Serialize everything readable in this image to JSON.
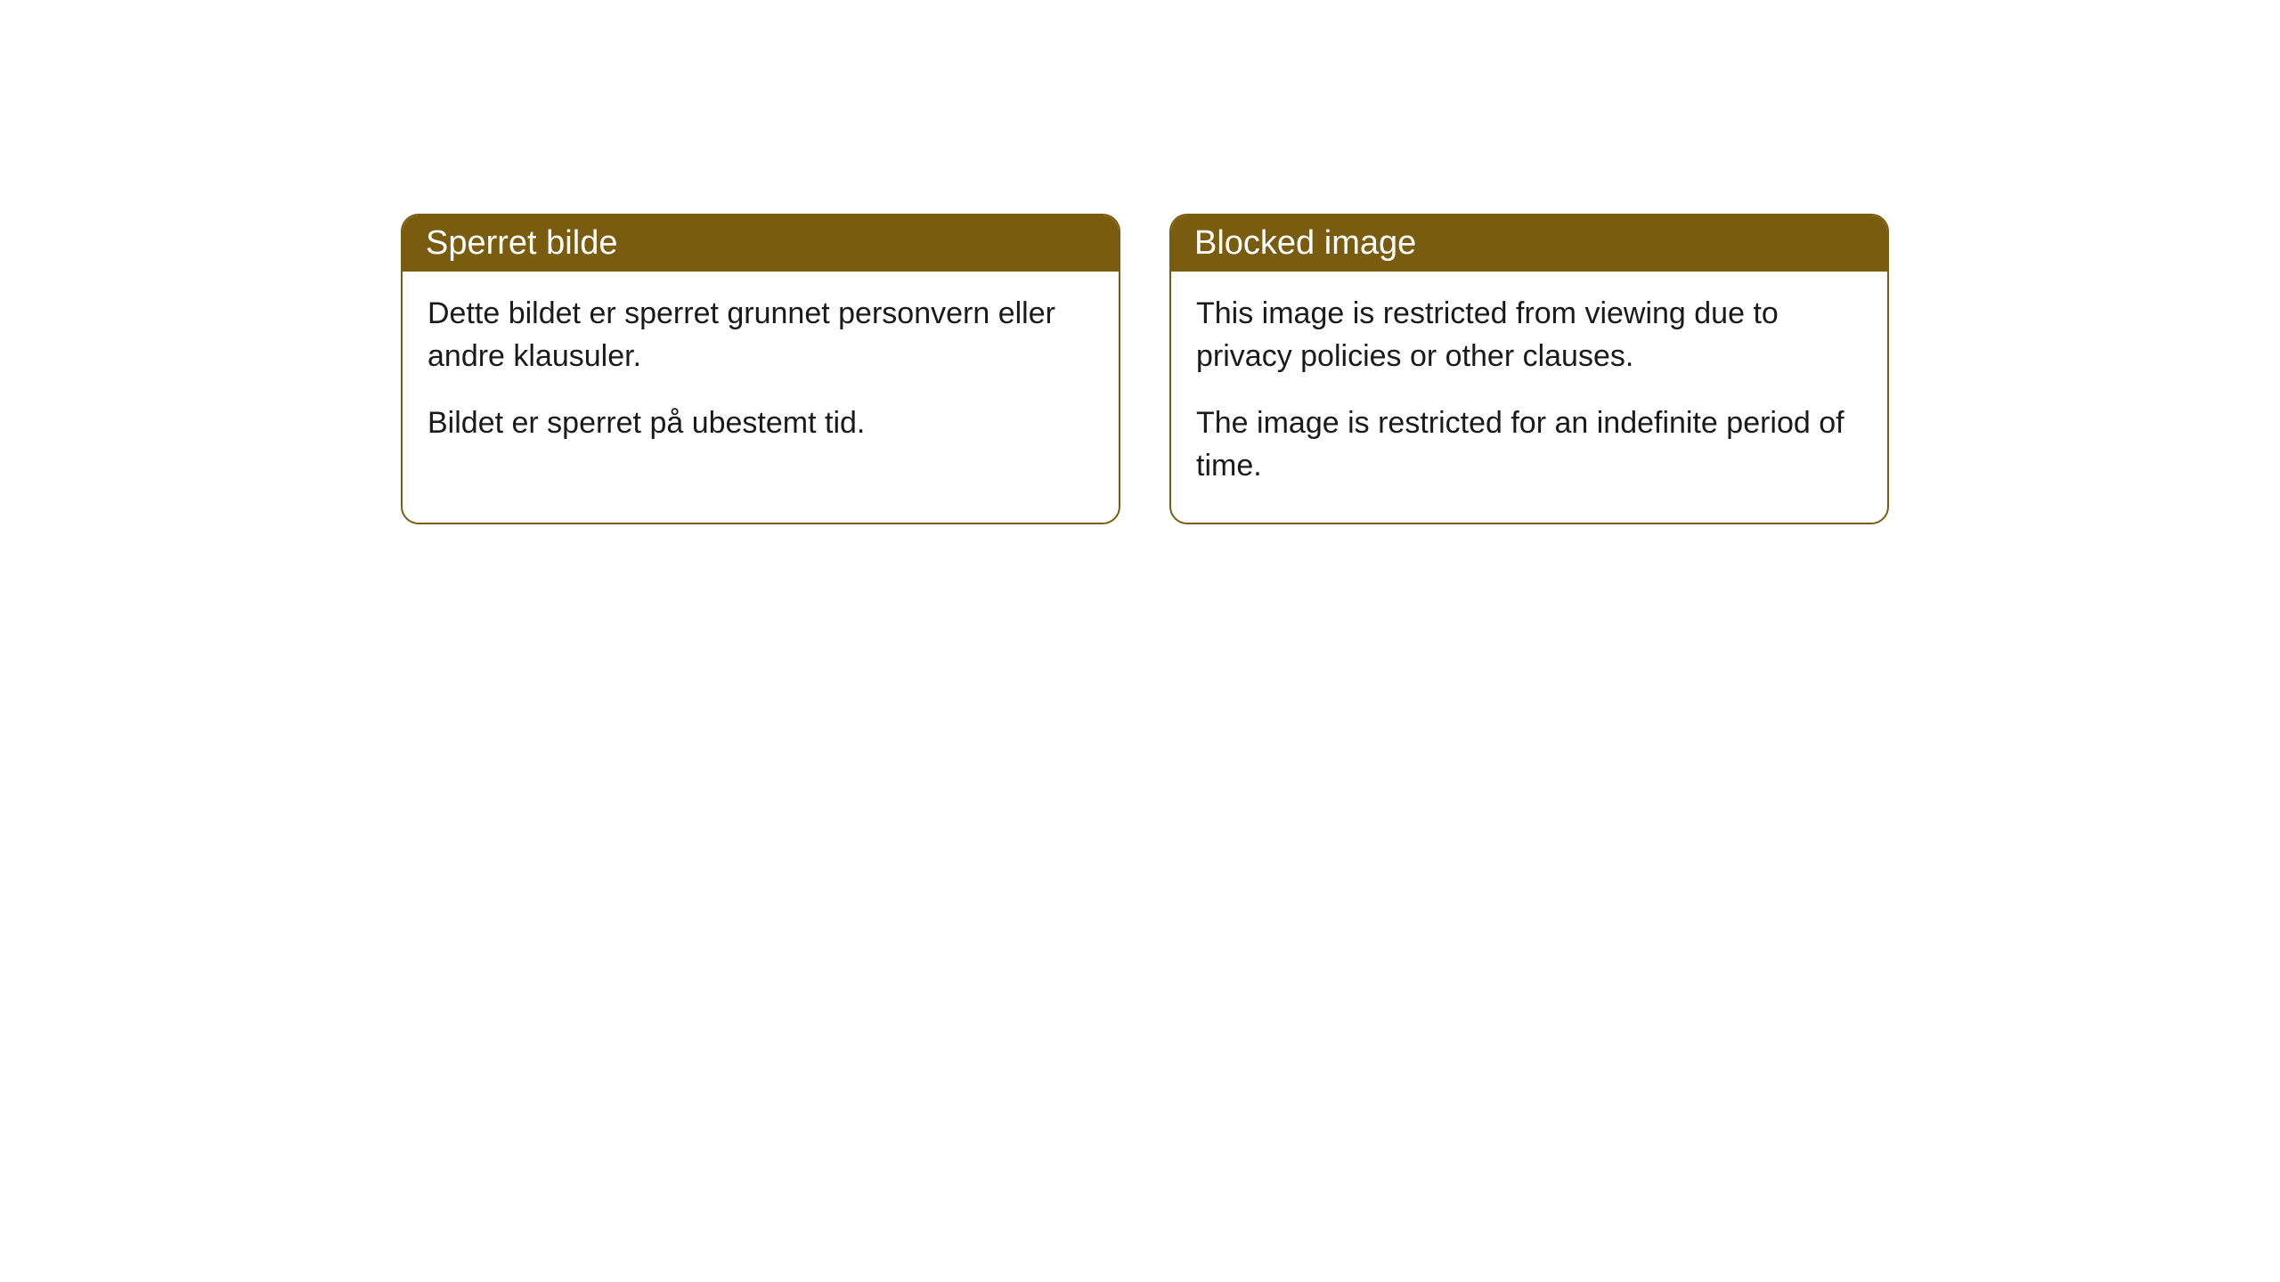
{
  "cards": [
    {
      "title": "Sperret bilde",
      "para1": "Dette bildet er sperret grunnet personvern eller andre klausuler.",
      "para2": "Bildet er sperret på ubestemt tid."
    },
    {
      "title": "Blocked image",
      "para1": "This image is restricted from viewing due to privacy policies or other clauses.",
      "para2": "The image is restricted for an indefinite period of time."
    }
  ],
  "style": {
    "header_bg": "#7a5c10",
    "header_text_color": "#ffffff",
    "border_color": "#7a5c10",
    "body_bg": "#ffffff",
    "body_text_color": "#1a1a1a",
    "border_radius": 20,
    "title_fontsize": 38,
    "body_fontsize": 34
  }
}
